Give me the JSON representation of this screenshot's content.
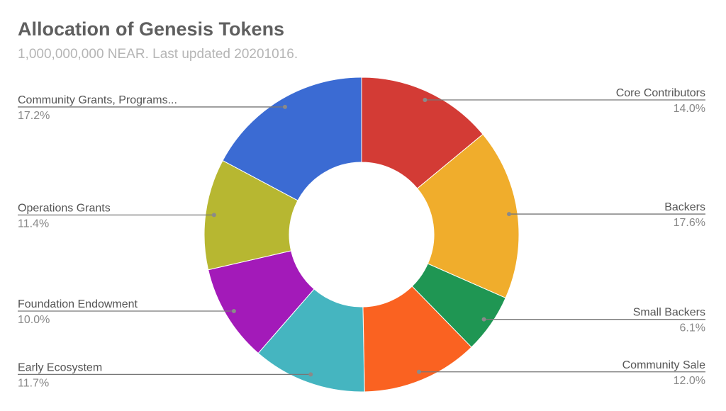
{
  "chart_data": {
    "type": "pie",
    "donut": true,
    "title": "Allocation of Genesis Tokens",
    "subtitle": "1,000,000,000 NEAR. Last updated 20201016.",
    "legend": "labeled",
    "slices": [
      {
        "label": "Core Contributors",
        "value": 14.0,
        "pct_label": "14.0%",
        "color": "#d33b35"
      },
      {
        "label": "Backers",
        "value": 17.6,
        "pct_label": "17.6%",
        "color": "#f0ad2c"
      },
      {
        "label": "Small Backers",
        "value": 6.1,
        "pct_label": "6.1%",
        "color": "#1f9653"
      },
      {
        "label": "Community Sale",
        "value": 12.0,
        "pct_label": "12.0%",
        "color": "#fa6221"
      },
      {
        "label": "Early Ecosystem",
        "value": 11.7,
        "pct_label": "11.7%",
        "color": "#45b5c0"
      },
      {
        "label": "Foundation Endowment",
        "value": 10.0,
        "pct_label": "10.0%",
        "color": "#a31ab9"
      },
      {
        "label": "Operations Grants",
        "value": 11.4,
        "pct_label": "11.4%",
        "color": "#b7b731"
      },
      {
        "label": "Community Grants, Programs...",
        "value": 17.2,
        "pct_label": "17.2%",
        "color": "#3b6bd3"
      }
    ]
  }
}
